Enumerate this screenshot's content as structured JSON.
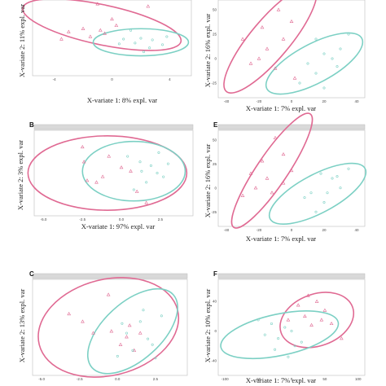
{
  "colors": {
    "group_a": "#e06a93",
    "group_b": "#7cd0c4"
  },
  "chart_data": [
    {
      "panel": "",
      "type": "scatter",
      "xlabel": "X-variate 1: 8% expl. var",
      "ylabel": "X-variate 2: 11% expl. var",
      "xlim": [
        -5.5,
        5.5
      ],
      "ylim": [
        -5.5,
        4.0
      ],
      "xticks": [
        "-4",
        "0",
        "4"
      ],
      "xtick_values": [
        -4,
        0,
        4
      ],
      "yticks": [],
      "ytick_values": [],
      "strip": false,
      "series": [
        {
          "marker": "triangle",
          "color": "group_a",
          "points": [
            [
              -1.0,
              3.5
            ],
            [
              0.0,
              1.6
            ],
            [
              -0.5,
              -0.2
            ],
            [
              -2.0,
              0.4
            ],
            [
              -3.0,
              0.0
            ],
            [
              -1.5,
              -0.6
            ],
            [
              -0.8,
              0.2
            ],
            [
              0.3,
              0.8
            ],
            [
              2.5,
              3.2
            ],
            [
              -3.5,
              -0.9
            ]
          ]
        },
        {
          "marker": "circle",
          "color": "group_b",
          "points": [
            [
              2.0,
              -0.8
            ],
            [
              2.8,
              -1.0
            ],
            [
              3.5,
              -1.6
            ],
            [
              1.6,
              -1.4
            ],
            [
              2.2,
              -2.5
            ],
            [
              0.8,
              -0.9
            ],
            [
              1.3,
              0.2
            ],
            [
              3.8,
              -0.6
            ],
            [
              0.5,
              -1.5
            ],
            [
              2.6,
              -2.0
            ]
          ]
        }
      ],
      "ellipses": [
        {
          "color": "group_a",
          "cx": -0.7,
          "cy": 0.9,
          "rx": 5.6,
          "ry": 2.5,
          "angle": 12
        },
        {
          "color": "group_b",
          "cx": 2.0,
          "cy": -1.3,
          "rx": 3.3,
          "ry": 1.7,
          "angle": 0
        }
      ]
    },
    {
      "panel": "",
      "type": "scatter",
      "xlabel": "X-variate 1: 7% expl. var",
      "ylabel": "X-variate 2: 16% expl. var",
      "xlim": [
        -45,
        45
      ],
      "ylim": [
        -40,
        60
      ],
      "xticks": [
        "-40",
        "-20",
        "0",
        "20",
        "40"
      ],
      "xtick_values": [
        -40,
        -20,
        0,
        20,
        40
      ],
      "yticks": [
        "50",
        "25",
        "0",
        "-25"
      ],
      "ytick_values": [
        50,
        25,
        0,
        -25
      ],
      "strip": false,
      "series": [
        {
          "marker": "triangle",
          "color": "group_a",
          "points": [
            [
              -8,
              50
            ],
            [
              0,
              38
            ],
            [
              -5,
              20
            ],
            [
              -15,
              10
            ],
            [
              -25,
              -5
            ],
            [
              -20,
              0
            ],
            [
              -10,
              -10
            ],
            [
              2,
              -20
            ],
            [
              -30,
              20
            ],
            [
              -18,
              32
            ]
          ]
        },
        {
          "marker": "circle",
          "color": "group_b",
          "points": [
            [
              15,
              20
            ],
            [
              20,
              5
            ],
            [
              25,
              0
            ],
            [
              10,
              -5
            ],
            [
              5,
              -25
            ],
            [
              30,
              10
            ],
            [
              35,
              25
            ],
            [
              15,
              -15
            ],
            [
              20,
              -30
            ],
            [
              28,
              -8
            ]
          ]
        }
      ],
      "ellipses": [
        {
          "color": "group_a",
          "cx": -13,
          "cy": 20,
          "rx": 42,
          "ry": 20,
          "angle": -50
        },
        {
          "color": "group_b",
          "cx": 14,
          "cy": -5,
          "rx": 33,
          "ry": 20,
          "angle": -28
        }
      ]
    },
    {
      "panel": "B",
      "type": "scatter",
      "xlabel": "X-variate 1: 97% expl. var",
      "ylabel": "X-variate 2: 3% expl. var",
      "xlim": [
        -5.6,
        4.6
      ],
      "ylim": [
        -2.3,
        2.3
      ],
      "xticks": [
        "-5.0",
        "-2.5",
        "0.0",
        "2.5"
      ],
      "xtick_values": [
        -5.0,
        -2.5,
        0.0,
        2.5
      ],
      "yticks": [],
      "ytick_values": [],
      "strip": true,
      "series": [
        {
          "marker": "triangle",
          "color": "group_a",
          "points": [
            [
              -2.5,
              1.4
            ],
            [
              -2.4,
              0.6
            ],
            [
              -1.6,
              -0.5
            ],
            [
              0.0,
              0.3
            ],
            [
              0.6,
              0.1
            ],
            [
              1.0,
              -1.0
            ],
            [
              -2.2,
              -0.4
            ],
            [
              -0.8,
              0.9
            ],
            [
              -1.2,
              -0.2
            ],
            [
              1.6,
              -1.6
            ]
          ]
        },
        {
          "marker": "circle",
          "color": "group_b",
          "points": [
            [
              0.4,
              0.9
            ],
            [
              1.2,
              0.6
            ],
            [
              1.9,
              0.4
            ],
            [
              2.3,
              0.0
            ],
            [
              2.7,
              -0.2
            ],
            [
              3.0,
              0.5
            ],
            [
              1.6,
              -0.5
            ],
            [
              0.8,
              -0.9
            ],
            [
              2.4,
              1.1
            ],
            [
              1.3,
              0.1
            ]
          ]
        }
      ],
      "ellipses": [
        {
          "color": "group_a",
          "cx": -0.9,
          "cy": 0.0,
          "rx": 5.1,
          "ry": 2.0,
          "angle": 0
        },
        {
          "color": "group_b",
          "cx": 0.8,
          "cy": 0.1,
          "rx": 3.3,
          "ry": 1.6,
          "angle": 0
        }
      ]
    },
    {
      "panel": "E",
      "type": "scatter",
      "xlabel": "X-variate 1: 7% expl. var",
      "ylabel": "X-variate 2: 16% expl. var",
      "xlim": [
        -45,
        45
      ],
      "ylim": [
        -40,
        60
      ],
      "xticks": [
        "-40",
        "-20",
        "0",
        "20",
        "40"
      ],
      "xtick_values": [
        -40,
        -20,
        0,
        20,
        40
      ],
      "yticks": [
        "50",
        "25",
        "0",
        "-25"
      ],
      "ytick_values": [
        50,
        25,
        0,
        -25
      ],
      "strip": true,
      "series": [
        {
          "marker": "triangle",
          "color": "group_a",
          "points": [
            [
              -10,
              52
            ],
            [
              -5,
              35
            ],
            [
              -18,
              28
            ],
            [
              -25,
              15
            ],
            [
              -15,
              10
            ],
            [
              -5,
              5
            ],
            [
              -12,
              -5
            ],
            [
              -22,
              0
            ],
            [
              0,
              18
            ],
            [
              -30,
              -8
            ]
          ]
        },
        {
          "marker": "circle",
          "color": "group_b",
          "points": [
            [
              18,
              15
            ],
            [
              25,
              10
            ],
            [
              30,
              0
            ],
            [
              12,
              -5
            ],
            [
              8,
              -10
            ],
            [
              20,
              -15
            ],
            [
              35,
              20
            ],
            [
              15,
              -25
            ],
            [
              22,
              -5
            ],
            [
              28,
              12
            ]
          ]
        }
      ],
      "ellipses": [
        {
          "color": "group_a",
          "cx": -12,
          "cy": 18,
          "rx": 42,
          "ry": 16,
          "angle": -56
        },
        {
          "color": "group_b",
          "cx": 16,
          "cy": -6,
          "rx": 33,
          "ry": 20,
          "angle": -28
        }
      ]
    },
    {
      "panel": "C",
      "type": "scatter",
      "xlabel": "",
      "ylabel": "X-variate 2: 13% expl. var",
      "xlim": [
        -5.6,
        4.6
      ],
      "ylim": [
        -2.5,
        2.5
      ],
      "xticks": [
        "-5.0",
        "-2.5",
        "0.0",
        "2.5"
      ],
      "xtick_values": [
        -5.0,
        -2.5,
        0.0,
        2.5
      ],
      "yticks": [],
      "ytick_values": [],
      "strip": true,
      "series": [
        {
          "marker": "triangle",
          "color": "group_a",
          "points": [
            [
              -0.6,
              1.7
            ],
            [
              -3.2,
              0.7
            ],
            [
              -1.6,
              -0.3
            ],
            [
              -0.4,
              -0.2
            ],
            [
              0.8,
              0.1
            ],
            [
              0.6,
              -0.5
            ],
            [
              1.1,
              -1.2
            ],
            [
              -2.3,
              0.3
            ],
            [
              0.2,
              -0.9
            ],
            [
              1.5,
              -0.3
            ]
          ]
        },
        {
          "marker": "circle",
          "color": "group_b",
          "points": [
            [
              0.3,
              0.2
            ],
            [
              1.5,
              0.3
            ],
            [
              2.0,
              -0.6
            ],
            [
              1.0,
              -1.2
            ],
            [
              2.3,
              -0.9
            ],
            [
              2.9,
              0.6
            ],
            [
              0.6,
              -0.3
            ],
            [
              1.7,
              0.9
            ],
            [
              0.0,
              -1.5
            ],
            [
              2.5,
              -1.6
            ]
          ]
        }
      ],
      "ellipses": [
        {
          "color": "group_a",
          "cx": -0.6,
          "cy": 0.0,
          "rx": 4.7,
          "ry": 2.5,
          "angle": -14
        },
        {
          "color": "group_b",
          "cx": 1.0,
          "cy": -0.2,
          "rx": 3.6,
          "ry": 1.5,
          "angle": -42
        }
      ]
    },
    {
      "panel": "F",
      "type": "scatter",
      "xlabel": "X-variate 1: 7% expl. var",
      "ylabel": "X-variate 2: 10% expl. var",
      "xlim": [
        -110,
        110
      ],
      "ylim": [
        -60,
        70
      ],
      "xticks": [
        "-100",
        "-50",
        "0",
        "50",
        "100"
      ],
      "xtick_values": [
        -100,
        -50,
        0,
        50,
        100
      ],
      "yticks": [
        "40",
        "0",
        "-40"
      ],
      "ytick_values": [
        40,
        0,
        -40
      ],
      "strip": true,
      "series": [
        {
          "marker": "triangle",
          "color": "group_a",
          "points": [
            [
              25,
              48
            ],
            [
              38,
              40
            ],
            [
              10,
              35
            ],
            [
              50,
              28
            ],
            [
              45,
              15
            ],
            [
              60,
              10
            ],
            [
              30,
              8
            ],
            [
              20,
              20
            ],
            [
              75,
              -10
            ],
            [
              -5,
              15
            ]
          ]
        },
        {
          "marker": "circle",
          "color": "group_b",
          "points": [
            [
              -30,
              10
            ],
            [
              -10,
              5
            ],
            [
              -20,
              -10
            ],
            [
              5,
              -20
            ],
            [
              -40,
              -5
            ],
            [
              15,
              -15
            ],
            [
              -5,
              -35
            ],
            [
              -50,
              15
            ],
            [
              0,
              0
            ],
            [
              -25,
              -25
            ]
          ]
        }
      ],
      "ellipses": [
        {
          "color": "group_a",
          "cx": 38,
          "cy": 15,
          "rx": 57,
          "ry": 35,
          "angle": -20
        },
        {
          "color": "group_b",
          "cx": -18,
          "cy": -5,
          "rx": 90,
          "ry": 28,
          "angle": -12
        }
      ]
    }
  ]
}
